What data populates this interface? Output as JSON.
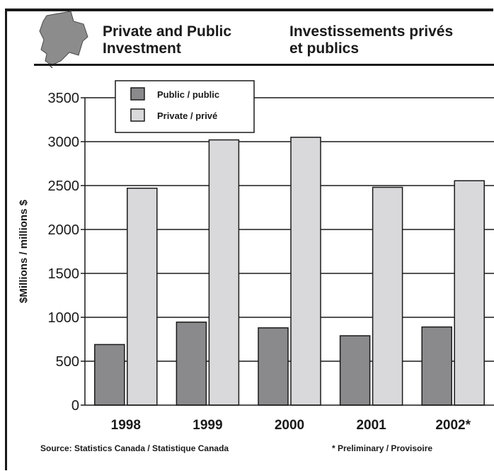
{
  "header": {
    "title_en": "Private and Public\nInvestment",
    "title_fr": "Investissements privés\net publics"
  },
  "footer": {
    "source": "Source: Statistics Canada / Statistique Canada",
    "note": "* Preliminary / Provisoire"
  },
  "colors": {
    "public": "#8a8a8d",
    "private": "#d9d9db",
    "ink": "#1a1a1a",
    "logo": "#8c8c8c"
  },
  "logo_icon": "new-brunswick-map-icon",
  "chart_data": {
    "type": "bar",
    "title": "",
    "xlabel": "",
    "ylabel": "$Millions / millions $",
    "categories": [
      "1998",
      "1999",
      "2000",
      "2001",
      "2002*"
    ],
    "series": [
      {
        "name": "Public / public",
        "values": [
          690,
          945,
          880,
          790,
          890
        ]
      },
      {
        "name": "Private / privé",
        "values": [
          2470,
          3020,
          3050,
          2480,
          2555
        ]
      }
    ],
    "ylim": [
      0,
      3500
    ],
    "yticks": [
      0,
      500,
      1000,
      1500,
      2000,
      2500,
      3000,
      3500
    ],
    "grid": "horizontal",
    "legend_position": "top-left"
  }
}
